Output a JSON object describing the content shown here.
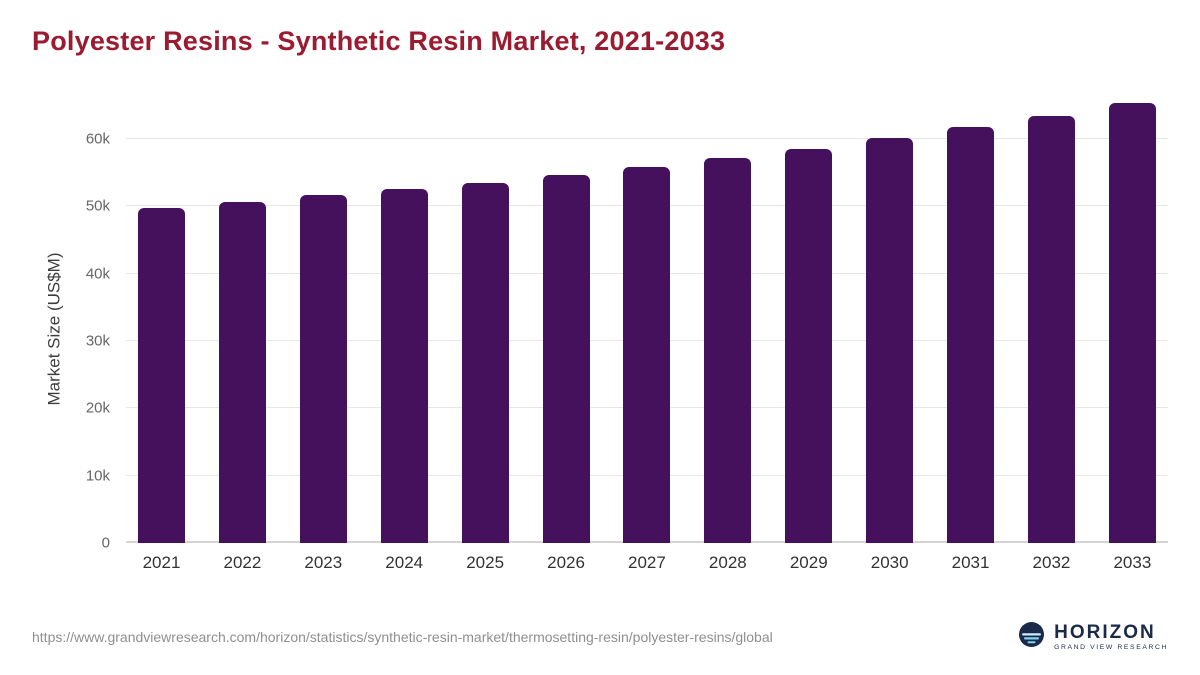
{
  "chart_data": {
    "type": "bar",
    "title": "Polyester Resins - Synthetic Resin Market, 2021-2033",
    "categories": [
      "2021",
      "2022",
      "2023",
      "2024",
      "2025",
      "2026",
      "2027",
      "2028",
      "2029",
      "2030",
      "2031",
      "2032",
      "2033"
    ],
    "values": [
      49800,
      50700,
      51600,
      52500,
      53500,
      54600,
      55800,
      57100,
      58500,
      60100,
      61700,
      63400,
      65400
    ],
    "xlabel": "",
    "ylabel": "Market Size (US$M)",
    "ylim": [
      0,
      68000
    ],
    "yticks": [
      0,
      10000,
      20000,
      30000,
      40000,
      50000,
      60000
    ],
    "ytick_labels": [
      "0",
      "10k",
      "20k",
      "30k",
      "40k",
      "50k",
      "60k"
    ],
    "grid": "horizontal",
    "legend": "none",
    "bar_color": "#45115C"
  },
  "colors": {
    "title": "#9B1B30",
    "bar": "#45115C",
    "gridline": "#e7e7e7",
    "axis_line": "#d4d4d4",
    "logo_navy": "#1b2a4a",
    "logo_light_blue": "#7FD4F0"
  },
  "footer": {
    "source_url": "https://www.grandviewresearch.com/horizon/statistics/synthetic-resin-market/thermosetting-resin/polyester-resins/global",
    "logo_title": "HORIZON",
    "logo_subtitle": "GRAND VIEW RESEARCH"
  }
}
